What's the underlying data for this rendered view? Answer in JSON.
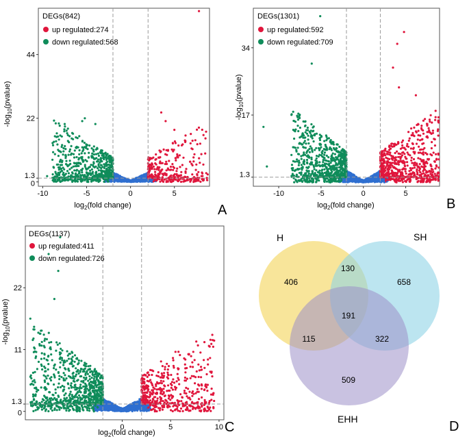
{
  "colors": {
    "up": "#e0163c",
    "down": "#0f8c5a",
    "ns": "#2f6fd0",
    "threshold": "#9a9a9a",
    "venn_h": "#f3d457",
    "venn_sh": "#8fd3e6",
    "venn_ehh": "#9d8fc8"
  },
  "chart_data": [
    {
      "type": "scatter",
      "panel": "A",
      "title": "",
      "xlabel_main": "log",
      "xlabel_sub": "2",
      "xlabel_rest": "(fold change)",
      "ylabel_main": "-log",
      "ylabel_sub": "10",
      "ylabel_rest": "(pvalue)",
      "xlim": [
        -10.5,
        9
      ],
      "ylim": [
        -1.5,
        60
      ],
      "xticks": [
        -10,
        -5,
        0,
        5
      ],
      "yticks": [
        0,
        1.3,
        22,
        44
      ],
      "ytick_labels": [
        "0",
        "1.3",
        "22",
        "44"
      ],
      "fc_threshold": 2,
      "p_threshold": 1.3,
      "legend": {
        "total": "DEGs(842)",
        "up": "up regulated:274",
        "down": "down regulated:568"
      },
      "counts": {
        "up": 274,
        "down": 568
      },
      "scale": {
        "k": 0.85,
        "max_up": 8,
        "max_down": 7,
        "ns_k": 0.9
      },
      "outliers_up": [
        [
          7.8,
          59
        ],
        [
          3.5,
          24
        ],
        [
          4,
          21
        ],
        [
          5,
          18
        ],
        [
          6.8,
          7
        ],
        [
          7.5,
          6
        ],
        [
          8.3,
          6
        ]
      ],
      "outliers_down": [
        [
          -7.5,
          20
        ],
        [
          -5.5,
          21
        ],
        [
          -4,
          20
        ],
        [
          -5.2,
          22
        ],
        [
          -8.2,
          5
        ],
        [
          -9.5,
          2
        ]
      ]
    },
    {
      "type": "scatter",
      "panel": "B",
      "title": "",
      "xlabel_main": "log",
      "xlabel_sub": "2",
      "xlabel_rest": "(fold change)",
      "ylabel_main": "-log",
      "ylabel_sub": "10",
      "ylabel_rest": "(pvalue)",
      "xlim": [
        -13,
        9
      ],
      "ylim": [
        -1,
        44
      ],
      "xticks": [
        -10,
        -5,
        0,
        5
      ],
      "yticks": [
        1.3,
        17,
        34
      ],
      "ytick_labels": [
        "1.3",
        "17",
        "34"
      ],
      "fc_threshold": 2,
      "p_threshold": 1.3,
      "legend": {
        "total": "DEGs(1301)",
        "up": "up regulated:592",
        "down": "down regulated:709"
      },
      "counts": {
        "up": 592,
        "down": 709
      },
      "scale": {
        "k": 0.75,
        "max_up": 7,
        "max_down": 6.5,
        "ns_k": 0.8
      },
      "outliers_up": [
        [
          4.8,
          38
        ],
        [
          4,
          35
        ],
        [
          3.5,
          29
        ],
        [
          4.2,
          24
        ],
        [
          6.2,
          22
        ],
        [
          6.5,
          13
        ],
        [
          7.2,
          5
        ]
      ],
      "outliers_down": [
        [
          -5.1,
          42
        ],
        [
          -6.1,
          30
        ],
        [
          -11.8,
          14
        ],
        [
          -11.4,
          4
        ]
      ]
    },
    {
      "type": "scatter",
      "panel": "C",
      "title": "",
      "xlabel_main": "log",
      "xlabel_sub": "2",
      "xlabel_rest": "(fold change)",
      "ylabel_main": "-log",
      "ylabel_sub": "10",
      "ylabel_rest": "(pvalue)",
      "xlim": [
        -10,
        10.5
      ],
      "ylim": [
        -1.5,
        33
      ],
      "xticks": [
        0,
        5,
        10
      ],
      "yticks": [
        0,
        1.3,
        11,
        22
      ],
      "ytick_labels": [
        "0",
        "1.3",
        "11",
        "22"
      ],
      "fc_threshold": 2,
      "p_threshold": 1.3,
      "legend": {
        "total": "DEGs(1137)",
        "up": "up regulated:411",
        "down": "down regulated:726"
      },
      "counts": {
        "up": 411,
        "down": 726
      },
      "scale": {
        "k": 0.6,
        "max_up": 7.5,
        "max_down": 7.5,
        "ns_k": 0.6
      },
      "outliers_up": [
        [
          9.4,
          11.5
        ],
        [
          7.5,
          5
        ],
        [
          8.2,
          4
        ],
        [
          6.5,
          6
        ]
      ],
      "outliers_down": [
        [
          -6.4,
          31
        ],
        [
          -7.6,
          28
        ],
        [
          -6.6,
          25
        ],
        [
          -9,
          7
        ],
        [
          -8,
          5.5
        ],
        [
          -7,
          20
        ]
      ]
    },
    {
      "type": "venn",
      "panel": "D",
      "sets": [
        "H",
        "SH",
        "EHH"
      ],
      "regions": {
        "H_only": "406",
        "SH_only": "658",
        "EHH_only": "509",
        "H_SH": "130",
        "H_EHH": "115",
        "SH_EHH": "322",
        "all": "191"
      }
    }
  ]
}
